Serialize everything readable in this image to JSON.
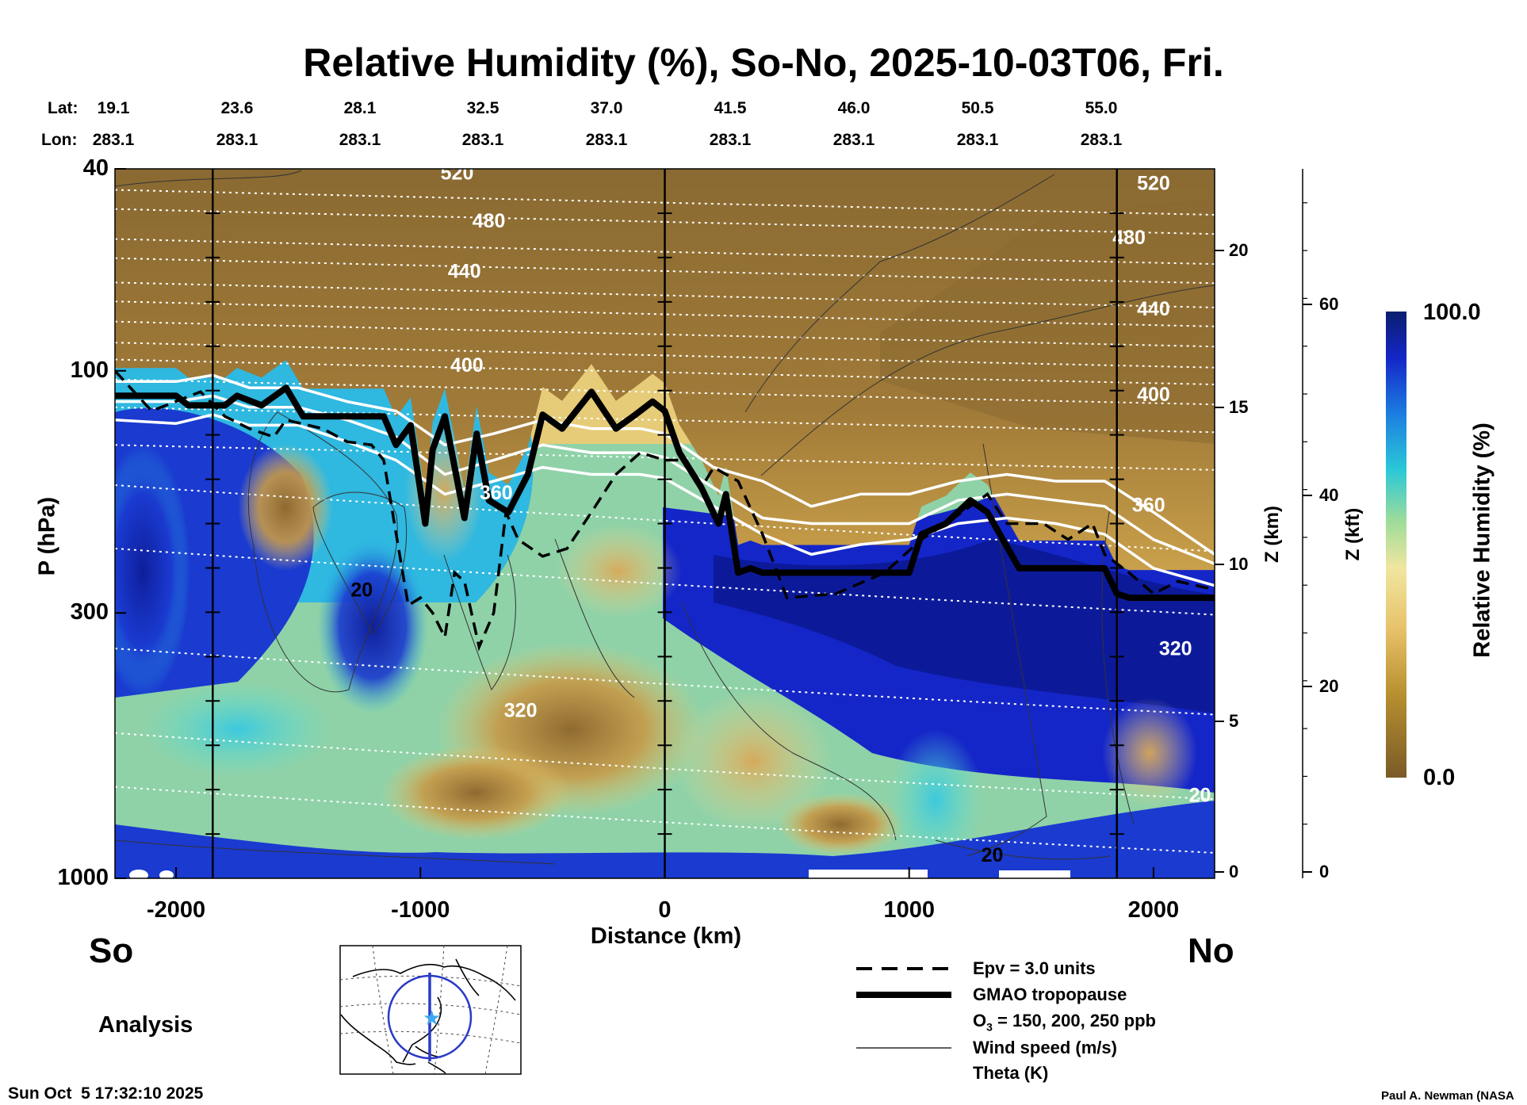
{
  "title": "Relative Humidity (%), So-No, 2025-10-03T06, Fri.",
  "lat_label": "Lat:",
  "lon_label": "Lon:",
  "lats": [
    "19.1",
    "23.6",
    "28.1",
    "32.5",
    "37.0",
    "41.5",
    "46.0",
    "50.5",
    "55.0"
  ],
  "lons": [
    "283.1",
    "283.1",
    "283.1",
    "283.1",
    "283.1",
    "283.1",
    "283.1",
    "283.1",
    "283.1"
  ],
  "left_side": "So",
  "right_side": "No",
  "analysis_label": "Analysis",
  "timestamp": "Sun Oct  5 17:32:10 2025",
  "credit": "Paul A. Newman (NASA",
  "colors": {
    "legend_bg": "#a88840",
    "dry": "#7a5a28",
    "wet": "#0a1e6e",
    "white": "#ffffff"
  },
  "chart_data": {
    "type": "heatmap",
    "xlabel": "Distance (km)",
    "ylabel": "P (hPa)",
    "z_km_label": "Z (km)",
    "z_kft_label": "Z (kft)",
    "xlim": [
      -2250,
      2250
    ],
    "ylim_hpa": [
      1000,
      40
    ],
    "y_scale": "log",
    "x_ticks": [
      "-2000",
      "-1000",
      "0",
      "1000",
      "2000"
    ],
    "y_ticks": [
      "40",
      "100",
      "300",
      "1000"
    ],
    "z_km_ticks": [
      "0",
      "5",
      "10",
      "15",
      "20"
    ],
    "z_kft_ticks": [
      "0",
      "20",
      "40",
      "60"
    ],
    "colorbar": {
      "label": "Relative Humidity (%)",
      "min": "0.0",
      "max": "100.0"
    },
    "theta_labels": [
      {
        "text": "520",
        "x": -850,
        "p": 41
      },
      {
        "text": "480",
        "x": -720,
        "p": 51
      },
      {
        "text": "440",
        "x": -820,
        "p": 64
      },
      {
        "text": "400",
        "x": -810,
        "p": 98
      },
      {
        "text": "360",
        "x": -690,
        "p": 175
      },
      {
        "text": "320",
        "x": -590,
        "p": 470
      },
      {
        "text": "520",
        "x": 2000,
        "p": 43
      },
      {
        "text": "480",
        "x": 1900,
        "p": 55
      },
      {
        "text": "440",
        "x": 2000,
        "p": 76
      },
      {
        "text": "400",
        "x": 2000,
        "p": 112
      },
      {
        "text": "360",
        "x": 1980,
        "p": 185
      },
      {
        "text": "320",
        "x": 2090,
        "p": 355
      },
      {
        "text": "20",
        "x": 2190,
        "p": 690
      }
    ],
    "wind_labels": [
      {
        "text": "20",
        "x": -1240,
        "p": 272
      },
      {
        "text": "20",
        "x": 1340,
        "p": 905
      }
    ],
    "theta_levels_hpa": [
      44,
      48,
      55,
      60,
      67,
      73,
      80,
      88,
      95,
      104,
      118,
      140,
      240,
      320,
      470,
      690,
      880
    ],
    "tropopause": {
      "x": [
        -2250,
        -2000,
        -1950,
        -1800,
        -1750,
        -1650,
        -1550,
        -1480,
        -1150,
        -1100,
        -1040,
        -980,
        -950,
        -900,
        -820,
        -770,
        -720,
        -640,
        -560,
        -500,
        -420,
        -300,
        -200,
        -120,
        -50,
        0,
        60,
        150,
        220,
        250,
        300,
        350,
        400,
        600,
        800,
        1000,
        1050,
        1150,
        1250,
        1320,
        1450,
        1600,
        1800,
        1850,
        1900,
        2250
      ],
      "p": [
        112,
        112,
        117,
        117,
        112,
        117,
        108,
        123,
        123,
        140,
        128,
        200,
        143,
        123,
        195,
        133,
        180,
        190,
        160,
        122,
        130,
        110,
        130,
        122,
        115,
        120,
        145,
        170,
        200,
        175,
        250,
        245,
        250,
        250,
        250,
        250,
        210,
        200,
        180,
        190,
        245,
        245,
        245,
        275,
        280,
        280
      ]
    },
    "epv_30": {
      "x": [
        -2250,
        -2100,
        -1900,
        -1800,
        -1700,
        -1600,
        -1550,
        -1400,
        -1300,
        -1200,
        -1150,
        -1050,
        -1000,
        -950,
        -900,
        -860,
        -820,
        -760,
        -700,
        -650,
        -600,
        -500,
        -400,
        -300,
        -200,
        -100,
        0,
        80,
        150,
        200,
        300,
        400,
        500,
        700,
        900,
        1050,
        1150,
        1250,
        1320,
        1400,
        1550,
        1650,
        1750,
        1800,
        1900,
        2000,
        2100,
        2250
      ],
      "p": [
        100,
        120,
        110,
        123,
        130,
        135,
        125,
        130,
        138,
        140,
        150,
        290,
        280,
        300,
        335,
        250,
        260,
        350,
        300,
        190,
        215,
        232,
        224,
        190,
        160,
        145,
        150,
        150,
        170,
        155,
        165,
        210,
        280,
        275,
        250,
        215,
        200,
        185,
        175,
        200,
        200,
        215,
        200,
        230,
        250,
        275,
        260,
        270
      ]
    },
    "o3_contours_hpa": [
      {
        "x": [
          -2250,
          -2000,
          -1850,
          -1700,
          -1500,
          -1300,
          -1100,
          -900,
          -700,
          -500,
          -300,
          -100,
          0,
          200,
          400,
          600,
          800,
          1000,
          1200,
          1400,
          1600,
          1800,
          2000,
          2250
        ],
        "p": [
          105,
          105,
          102,
          108,
          108,
          115,
          120,
          140,
          133,
          125,
          130,
          130,
          133,
          155,
          165,
          185,
          175,
          175,
          165,
          160,
          165,
          165,
          190,
          230
        ]
      },
      {
        "x": [
          -2250,
          -2000,
          -1850,
          -1700,
          -1500,
          -1300,
          -1100,
          -900,
          -700,
          -500,
          -300,
          -100,
          0,
          200,
          400,
          600,
          800,
          1000,
          1200,
          1400,
          1600,
          1800,
          2000,
          2250
        ],
        "p": [
          115,
          115,
          112,
          118,
          118,
          125,
          135,
          160,
          150,
          140,
          145,
          145,
          148,
          170,
          195,
          200,
          200,
          200,
          180,
          175,
          180,
          185,
          215,
          240
        ]
      },
      {
        "x": [
          -2250,
          -2000,
          -1850,
          -1700,
          -1500,
          -1300,
          -1100,
          -900,
          -700,
          -500,
          -300,
          -100,
          0,
          200,
          400,
          600,
          800,
          1000,
          1200,
          1400,
          1600,
          1800,
          2000,
          2250
        ],
        "p": [
          125,
          127,
          122,
          128,
          128,
          138,
          150,
          175,
          165,
          155,
          160,
          160,
          163,
          185,
          210,
          230,
          220,
          215,
          200,
          195,
          200,
          210,
          245,
          265
        ]
      }
    ]
  },
  "legend": {
    "epv": "Epv = 3.0 units",
    "trop": "GMAO tropopause",
    "o3_prefix": "O",
    "o3_sub": "3",
    "o3_suffix": " = 150, 200, 250 ppb",
    "wind": "Wind speed (m/s)",
    "theta": "Theta (K)"
  }
}
